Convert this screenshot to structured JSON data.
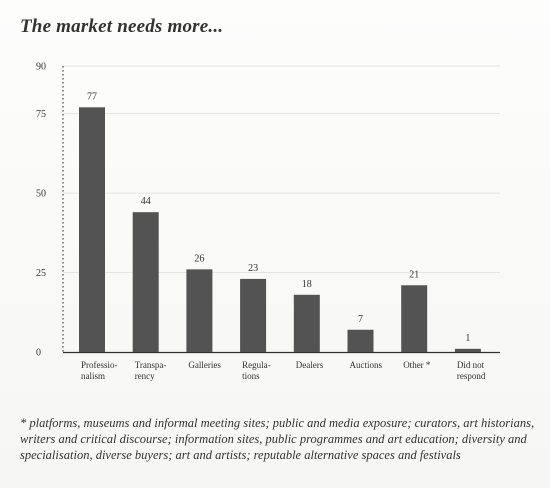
{
  "chart_data": {
    "type": "bar",
    "title": "The market needs more...",
    "categories": [
      [
        "Professio-",
        "nalism"
      ],
      [
        "Transpa-",
        "rency"
      ],
      [
        "Galleries"
      ],
      [
        "Regula-",
        "tions"
      ],
      [
        "Dealers"
      ],
      [
        "Auctions"
      ],
      [
        "Other *"
      ],
      [
        "Did not",
        "respond"
      ]
    ],
    "values": [
      77,
      44,
      26,
      23,
      18,
      7,
      21,
      1
    ],
    "ylim": [
      0,
      90
    ],
    "yticks": [
      0,
      25,
      50,
      75,
      90
    ],
    "grid": true,
    "xlabel": "",
    "ylabel": "",
    "bar_color": "#535353",
    "grid_color": "#e4e4e2"
  },
  "footnote": "* platforms, museums and informal meeting sites; public and media exposure; curators, art historians, writers and critical discourse; information sites, public programmes and art education; diversity and specialisation, diverse buyers; art and artists; reputable alternative spaces and festivals"
}
